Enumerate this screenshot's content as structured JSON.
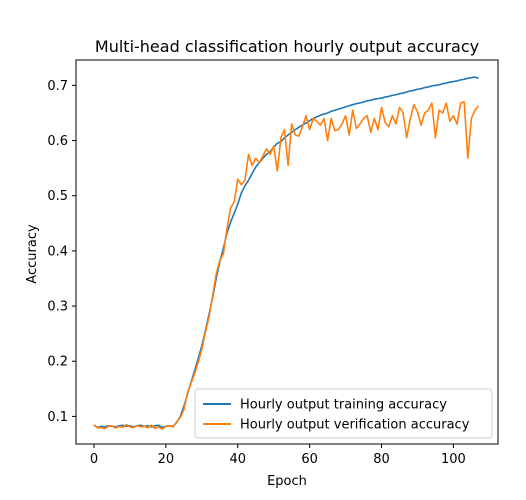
{
  "chart_data": {
    "type": "line",
    "title": "Multi-head classification hourly output accuracy",
    "xlabel": "Epoch",
    "ylabel": "Accuracy",
    "xlim": [
      -5,
      112.4
    ],
    "ylim": [
      0.05,
      0.746
    ],
    "xticks": [
      0,
      20,
      40,
      60,
      80,
      100
    ],
    "yticks": [
      0.1,
      0.2,
      0.3,
      0.4,
      0.5,
      0.6,
      0.7
    ],
    "grid": false,
    "legend_position": "lower-right",
    "series": [
      {
        "name": "Hourly output training accuracy",
        "color": "#1f77b4",
        "values": [
          0.084,
          0.08,
          0.082,
          0.081,
          0.083,
          0.082,
          0.081,
          0.083,
          0.084,
          0.082,
          0.083,
          0.081,
          0.083,
          0.084,
          0.082,
          0.083,
          0.081,
          0.083,
          0.084,
          0.08,
          0.082,
          0.083,
          0.082,
          0.089,
          0.1,
          0.118,
          0.14,
          0.162,
          0.183,
          0.205,
          0.228,
          0.255,
          0.285,
          0.315,
          0.35,
          0.38,
          0.405,
          0.432,
          0.452,
          0.468,
          0.485,
          0.505,
          0.518,
          0.528,
          0.54,
          0.552,
          0.56,
          0.568,
          0.575,
          0.58,
          0.588,
          0.595,
          0.598,
          0.605,
          0.61,
          0.615,
          0.62,
          0.624,
          0.628,
          0.632,
          0.636,
          0.64,
          0.643,
          0.646,
          0.648,
          0.65,
          0.653,
          0.655,
          0.657,
          0.659,
          0.661,
          0.663,
          0.665,
          0.667,
          0.668,
          0.67,
          0.672,
          0.673,
          0.675,
          0.676,
          0.677,
          0.679,
          0.68,
          0.682,
          0.683,
          0.685,
          0.686,
          0.688,
          0.69,
          0.691,
          0.693,
          0.694,
          0.696,
          0.697,
          0.699,
          0.7,
          0.701,
          0.703,
          0.704,
          0.706,
          0.707,
          0.708,
          0.71,
          0.711,
          0.713,
          0.714,
          0.715,
          0.713
        ]
      },
      {
        "name": "Hourly output verification accuracy",
        "color": "#ff7f0e",
        "values": [
          0.085,
          0.079,
          0.08,
          0.078,
          0.082,
          0.083,
          0.079,
          0.082,
          0.08,
          0.085,
          0.081,
          0.08,
          0.083,
          0.081,
          0.082,
          0.08,
          0.084,
          0.078,
          0.081,
          0.077,
          0.082,
          0.083,
          0.081,
          0.09,
          0.098,
          0.112,
          0.142,
          0.16,
          0.178,
          0.198,
          0.222,
          0.252,
          0.28,
          0.318,
          0.358,
          0.382,
          0.395,
          0.44,
          0.478,
          0.488,
          0.53,
          0.52,
          0.528,
          0.575,
          0.555,
          0.568,
          0.56,
          0.572,
          0.585,
          0.575,
          0.59,
          0.545,
          0.605,
          0.62,
          0.555,
          0.63,
          0.61,
          0.608,
          0.625,
          0.645,
          0.62,
          0.64,
          0.635,
          0.628,
          0.64,
          0.6,
          0.64,
          0.618,
          0.62,
          0.63,
          0.645,
          0.61,
          0.655,
          0.622,
          0.63,
          0.64,
          0.645,
          0.615,
          0.64,
          0.62,
          0.66,
          0.633,
          0.625,
          0.645,
          0.63,
          0.66,
          0.65,
          0.605,
          0.64,
          0.665,
          0.652,
          0.628,
          0.65,
          0.655,
          0.668,
          0.605,
          0.655,
          0.65,
          0.668,
          0.635,
          0.645,
          0.63,
          0.668,
          0.67,
          0.568,
          0.64,
          0.655,
          0.663
        ]
      }
    ]
  }
}
